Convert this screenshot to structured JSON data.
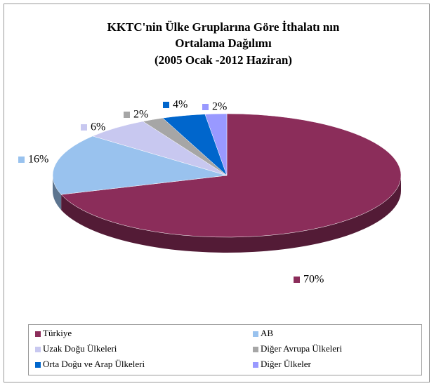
{
  "chart_data": {
    "type": "pie",
    "title": [
      "KKTC'nin Ülke Gruplarına Göre  İthalatı nın",
      "Ortalama Dağılımı",
      "(2005 Ocak -2012 Haziran)"
    ],
    "categories": [
      "Türkiye",
      "AB",
      "Uzak Doğu Ülkeleri",
      "Diğer Avrupa Ülkeleri",
      "Orta Doğu ve Arap Ülkeleri",
      "Diğer Ülkeler"
    ],
    "values": [
      70,
      16,
      6,
      2,
      4,
      2
    ],
    "value_labels": [
      "70%",
      "16%",
      "6%",
      "2%",
      "4%",
      "2%"
    ],
    "colors": [
      "#8b2d5a",
      "#99c2ee",
      "#c8c8f0",
      "#a6a6a6",
      "#0066cc",
      "#9999ff"
    ],
    "legend": "bottom"
  }
}
